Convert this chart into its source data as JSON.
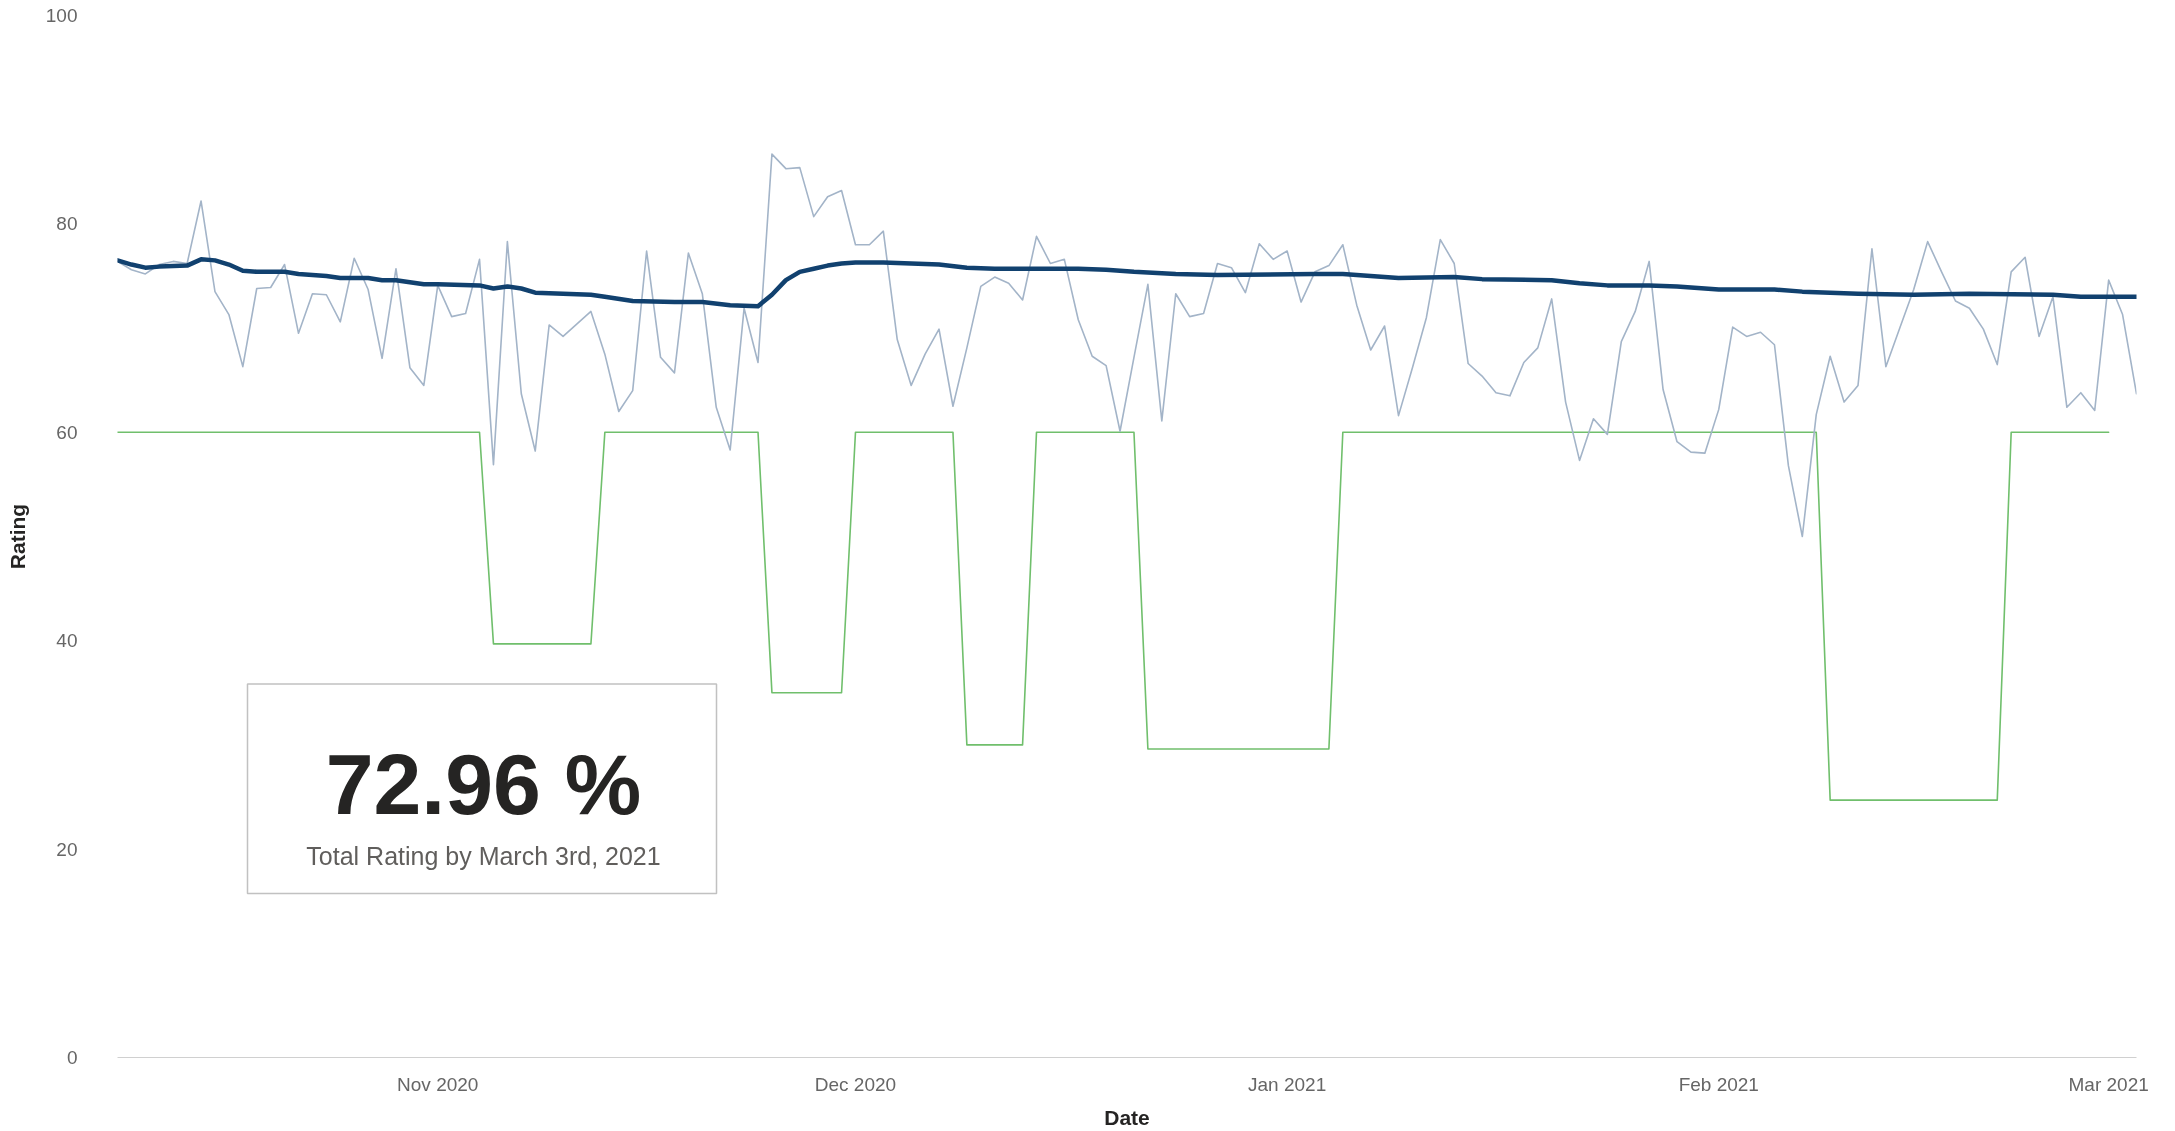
{
  "chart_data": {
    "type": "line",
    "xlabel": "Date",
    "ylabel": "Rating",
    "xlim": [
      "2020-10-09",
      "2021-03-03"
    ],
    "ylim": [
      0,
      100
    ],
    "xticks": [
      {
        "value": "2020-11-01",
        "label": "Nov 2020"
      },
      {
        "value": "2020-12-01",
        "label": "Dec 2020"
      },
      {
        "value": "2021-01-01",
        "label": "Jan 2021"
      },
      {
        "value": "2021-02-01",
        "label": "Feb 2021"
      },
      {
        "value": "2021-03-01",
        "label": "Mar 2021"
      }
    ],
    "yticks": [
      0,
      20,
      40,
      60,
      80,
      100
    ],
    "grid": false,
    "annotations": [
      "72.96 %",
      "Total Rating by March 3rd, 2021"
    ],
    "x": [
      "2020-10-09",
      "2020-10-10",
      "2020-10-11",
      "2020-10-12",
      "2020-10-13",
      "2020-10-14",
      "2020-10-15",
      "2020-10-16",
      "2020-10-17",
      "2020-10-18",
      "2020-10-19",
      "2020-10-20",
      "2020-10-21",
      "2020-10-22",
      "2020-10-23",
      "2020-10-24",
      "2020-10-25",
      "2020-10-26",
      "2020-10-27",
      "2020-10-28",
      "2020-10-29",
      "2020-10-30",
      "2020-10-31",
      "2020-11-01",
      "2020-11-02",
      "2020-11-03",
      "2020-11-04",
      "2020-11-05",
      "2020-11-06",
      "2020-11-07",
      "2020-11-08",
      "2020-11-09",
      "2020-11-10",
      "2020-11-11",
      "2020-11-12",
      "2020-11-13",
      "2020-11-14",
      "2020-11-15",
      "2020-11-16",
      "2020-11-17",
      "2020-11-18",
      "2020-11-19",
      "2020-11-20",
      "2020-11-21",
      "2020-11-22",
      "2020-11-23",
      "2020-11-24",
      "2020-11-25",
      "2020-11-26",
      "2020-11-27",
      "2020-11-28",
      "2020-11-29",
      "2020-11-30",
      "2020-12-01",
      "2020-12-02",
      "2020-12-03",
      "2020-12-04",
      "2020-12-05",
      "2020-12-06",
      "2020-12-07",
      "2020-12-08",
      "2020-12-09",
      "2020-12-10",
      "2020-12-11",
      "2020-12-12",
      "2020-12-13",
      "2020-12-14",
      "2020-12-15",
      "2020-12-16",
      "2020-12-17",
      "2020-12-18",
      "2020-12-19",
      "2020-12-20",
      "2020-12-21",
      "2020-12-22",
      "2020-12-23",
      "2020-12-24",
      "2020-12-25",
      "2020-12-26",
      "2020-12-27",
      "2020-12-28",
      "2020-12-29",
      "2020-12-30",
      "2020-12-31",
      "2021-01-01",
      "2021-01-02",
      "2021-01-03",
      "2021-01-04",
      "2021-01-05",
      "2021-01-06",
      "2021-01-07",
      "2021-01-08",
      "2021-01-09",
      "2021-01-10",
      "2021-01-11",
      "2021-01-12",
      "2021-01-13",
      "2021-01-14",
      "2021-01-15",
      "2021-01-16",
      "2021-01-17",
      "2021-01-18",
      "2021-01-19",
      "2021-01-20",
      "2021-01-21",
      "2021-01-22",
      "2021-01-23",
      "2021-01-24",
      "2021-01-25",
      "2021-01-26",
      "2021-01-27",
      "2021-01-28",
      "2021-01-29",
      "2021-01-30",
      "2021-01-31",
      "2021-02-01",
      "2021-02-02",
      "2021-02-03",
      "2021-02-04",
      "2021-02-05",
      "2021-02-06",
      "2021-02-07",
      "2021-02-08",
      "2021-02-09",
      "2021-02-10",
      "2021-02-11",
      "2021-02-12",
      "2021-02-13",
      "2021-02-14",
      "2021-02-15",
      "2021-02-16",
      "2021-02-17",
      "2021-02-18",
      "2021-02-19",
      "2021-02-20",
      "2021-02-21",
      "2021-02-22",
      "2021-02-23",
      "2021-02-24",
      "2021-02-25",
      "2021-02-26",
      "2021-02-27",
      "2021-02-28",
      "2021-03-01",
      "2021-03-02",
      "2021-03-03"
    ],
    "series": [
      {
        "color": "#70bf6c",
        "x": [
          "2020-10-09",
          "2020-11-04",
          "2020-11-05",
          "2020-11-12",
          "2020-11-13",
          "2020-11-24",
          "2020-11-25",
          "2020-11-30",
          "2020-12-01",
          "2020-12-08",
          "2020-12-09",
          "2020-12-13",
          "2020-12-14",
          "2020-12-21",
          "2020-12-22",
          "2021-01-04",
          "2021-01-05",
          "2021-02-08",
          "2021-02-09",
          "2021-02-21",
          "2021-02-22",
          "2021-03-01"
        ],
        "values": [
          60,
          60,
          39.7,
          39.7,
          60,
          60,
          35,
          35,
          60,
          60,
          30,
          30,
          60,
          60,
          29.6,
          29.6,
          60,
          60,
          24.7,
          24.7,
          60,
          60
        ]
      },
      {
        "color": "#a3b4c8",
        "values": [
          76.4,
          75.6,
          75.2,
          76.1,
          76.4,
          76.2,
          82.2,
          73.5,
          71.3,
          66.3,
          73.8,
          73.9,
          76.1,
          69.5,
          73.3,
          73.2,
          70.6,
          76.7,
          73.7,
          67.1,
          75.7,
          66.2,
          64.5,
          74.1,
          71.1,
          71.4,
          76.6,
          56.9,
          78.3,
          63.7,
          58.2,
          70.3,
          69.2,
          70.4,
          71.6,
          67.5,
          62.0,
          64.0,
          77.4,
          67.2,
          65.7,
          77.2,
          73.3,
          62.4,
          58.3,
          71.9,
          66.7,
          86.7,
          85.3,
          85.4,
          80.7,
          82.6,
          83.2,
          78.0,
          78.0,
          79.3,
          68.9,
          64.5,
          67.5,
          69.9,
          62.5,
          68.1,
          74.0,
          74.9,
          74.3,
          72.7,
          78.8,
          76.2,
          76.6,
          70.8,
          67.3,
          66.4,
          60.1,
          67.2,
          74.2,
          61.1,
          73.3,
          71.1,
          71.4,
          76.2,
          75.8,
          73.4,
          78.1,
          76.6,
          77.4,
          72.5,
          75.4,
          76.0,
          78.0,
          72.2,
          67.9,
          70.2,
          61.6,
          66.2,
          71.0,
          78.5,
          76.2,
          66.6,
          65.4,
          63.8,
          63.5,
          66.7,
          68.1,
          72.8,
          62.9,
          57.3,
          61.3,
          59.8,
          68.7,
          71.6,
          76.4,
          64.1,
          59.1,
          58.1,
          58.0,
          62.2,
          70.1,
          69.2,
          69.6,
          68.4,
          56.8,
          50.0,
          61.7,
          67.3,
          62.9,
          64.5,
          77.6,
          66.3,
          70.0,
          73.7,
          78.3,
          75.4,
          72.6,
          71.9,
          69.9,
          66.5,
          75.4,
          76.8,
          69.2,
          73.0,
          62.4,
          63.8,
          62.1,
          74.6,
          71.3,
          63.7
        ]
      },
      {
        "color": "#11416f",
        "x": [
          "2020-10-09",
          "2020-10-10",
          "2020-10-11",
          "2020-10-12",
          "2020-10-14",
          "2020-10-15",
          "2020-10-16",
          "2020-10-17",
          "2020-10-18",
          "2020-10-19",
          "2020-10-21",
          "2020-10-22",
          "2020-10-24",
          "2020-10-25",
          "2020-10-27",
          "2020-10-28",
          "2020-10-29",
          "2020-10-30",
          "2020-10-31",
          "2020-11-01",
          "2020-11-04",
          "2020-11-05",
          "2020-11-06",
          "2020-11-07",
          "2020-11-08",
          "2020-11-10",
          "2020-11-12",
          "2020-11-13",
          "2020-11-15",
          "2020-11-18",
          "2020-11-20",
          "2020-11-22",
          "2020-11-24",
          "2020-11-25",
          "2020-11-26",
          "2020-11-27",
          "2020-11-28",
          "2020-11-29",
          "2020-11-30",
          "2020-12-01",
          "2020-12-03",
          "2020-12-05",
          "2020-12-07",
          "2020-12-09",
          "2020-12-11",
          "2020-12-17",
          "2020-12-19",
          "2020-12-21",
          "2020-12-24",
          "2020-12-27",
          "2021-01-03",
          "2021-01-05",
          "2021-01-07",
          "2021-01-09",
          "2021-01-13",
          "2021-01-15",
          "2021-01-20",
          "2021-01-22",
          "2021-01-24",
          "2021-01-27",
          "2021-01-29",
          "2021-02-01",
          "2021-02-05",
          "2021-02-07",
          "2021-02-09",
          "2021-02-11",
          "2021-02-15",
          "2021-02-19",
          "2021-02-25",
          "2021-02-27",
          "2021-03-03"
        ],
        "values": [
          76.5,
          76.1,
          75.8,
          75.9,
          76.0,
          76.6,
          76.5,
          76.1,
          75.5,
          75.4,
          75.4,
          75.2,
          75.0,
          74.8,
          74.8,
          74.6,
          74.6,
          74.4,
          74.2,
          74.2,
          74.1,
          73.8,
          74.0,
          73.8,
          73.4,
          73.3,
          73.2,
          73.0,
          72.6,
          72.5,
          72.5,
          72.2,
          72.1,
          73.2,
          74.6,
          75.4,
          75.7,
          76.0,
          76.2,
          76.3,
          76.3,
          76.2,
          76.1,
          75.8,
          75.7,
          75.7,
          75.6,
          75.4,
          75.2,
          75.1,
          75.2,
          75.2,
          75.0,
          74.8,
          74.9,
          74.7,
          74.6,
          74.3,
          74.1,
          74.1,
          74.0,
          73.7,
          73.7,
          73.5,
          73.4,
          73.3,
          73.2,
          73.3,
          73.2,
          73.0,
          73.0
        ]
      }
    ]
  }
}
